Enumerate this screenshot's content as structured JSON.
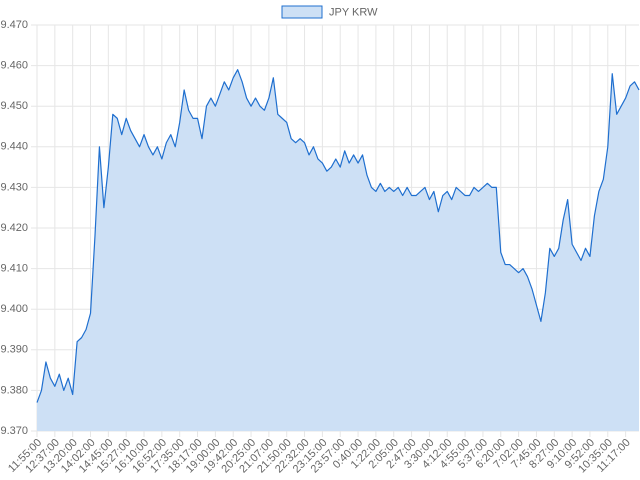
{
  "chart_data": {
    "type": "line",
    "fill": true,
    "grid": true,
    "legend": "top",
    "ylim": [
      9.37,
      9.47
    ],
    "yticks": [
      {
        "value": 9.37,
        "label": "9.370"
      },
      {
        "value": 9.38,
        "label": "9.380"
      },
      {
        "value": 9.39,
        "label": "9.390"
      },
      {
        "value": 9.4,
        "label": "9.400"
      },
      {
        "value": 9.41,
        "label": "9.410"
      },
      {
        "value": 9.42,
        "label": "9.420"
      },
      {
        "value": 9.43,
        "label": "9.430"
      },
      {
        "value": 9.44,
        "label": "9.440"
      },
      {
        "value": 9.45,
        "label": "9.450"
      },
      {
        "value": 9.46,
        "label": "9.460"
      },
      {
        "value": 9.47,
        "label": "9.470"
      }
    ],
    "categories": [
      "11:55:00",
      null,
      null,
      null,
      "12:37:00",
      null,
      null,
      null,
      "13:20:00",
      null,
      null,
      null,
      "14:02:00",
      null,
      null,
      null,
      "14:45:00",
      null,
      null,
      null,
      "15:27:00",
      null,
      null,
      null,
      "16:10:00",
      null,
      null,
      null,
      "16:52:00",
      null,
      null,
      null,
      "17:35:00",
      null,
      null,
      null,
      "18:17:00",
      null,
      null,
      null,
      "19:00:00",
      null,
      null,
      null,
      "19:42:00",
      null,
      null,
      null,
      "20:25:00",
      null,
      null,
      null,
      "21:07:00",
      null,
      null,
      null,
      "21:50:00",
      null,
      null,
      null,
      "22:32:00",
      null,
      null,
      null,
      "23:15:00",
      null,
      null,
      null,
      "23:57:00",
      null,
      null,
      null,
      "0:40:00",
      null,
      null,
      null,
      "1:22:00",
      null,
      null,
      null,
      "2:05:00",
      null,
      null,
      null,
      "2:47:00",
      null,
      null,
      null,
      "3:30:00",
      null,
      null,
      null,
      "4:12:00",
      null,
      null,
      null,
      "4:55:00",
      null,
      null,
      null,
      "5:37:00",
      null,
      null,
      null,
      "6:20:00",
      null,
      null,
      null,
      "7:02:00",
      null,
      null,
      null,
      "7:45:00",
      null,
      null,
      null,
      "8:27:00",
      null,
      null,
      null,
      "9:10:00",
      null,
      null,
      null,
      "9:52:00",
      null,
      null,
      null,
      "10:35:00",
      null,
      null,
      null,
      "11:17:00",
      null,
      null,
      null
    ],
    "series": [
      {
        "name": "JPY KRW",
        "color": "#1f6fcf",
        "fill_color": "#cde0f5",
        "values": [
          9.377,
          9.38,
          9.387,
          9.383,
          9.381,
          9.384,
          9.38,
          9.383,
          9.379,
          9.392,
          9.393,
          9.395,
          9.399,
          9.418,
          9.44,
          9.425,
          9.435,
          9.448,
          9.447,
          9.443,
          9.447,
          9.444,
          9.442,
          9.44,
          9.443,
          9.44,
          9.438,
          9.44,
          9.437,
          9.441,
          9.443,
          9.44,
          9.446,
          9.454,
          9.449,
          9.447,
          9.447,
          9.442,
          9.45,
          9.452,
          9.45,
          9.453,
          9.456,
          9.454,
          9.457,
          9.459,
          9.456,
          9.452,
          9.45,
          9.452,
          9.45,
          9.449,
          9.452,
          9.457,
          9.448,
          9.447,
          9.446,
          9.442,
          9.441,
          9.442,
          9.441,
          9.438,
          9.44,
          9.437,
          9.436,
          9.434,
          9.435,
          9.437,
          9.435,
          9.439,
          9.436,
          9.438,
          9.436,
          9.438,
          9.433,
          9.43,
          9.429,
          9.431,
          9.429,
          9.43,
          9.429,
          9.43,
          9.428,
          9.43,
          9.428,
          9.428,
          9.429,
          9.43,
          9.427,
          9.429,
          9.424,
          9.428,
          9.429,
          9.427,
          9.43,
          9.429,
          9.428,
          9.428,
          9.43,
          9.429,
          9.43,
          9.431,
          9.43,
          9.43,
          9.414,
          9.411,
          9.411,
          9.41,
          9.409,
          9.41,
          9.408,
          9.405,
          9.401,
          9.397,
          9.404,
          9.415,
          9.413,
          9.415,
          9.422,
          9.427,
          9.416,
          9.414,
          9.412,
          9.415,
          9.413,
          9.423,
          9.429,
          9.432,
          9.44,
          9.458,
          9.448,
          9.45,
          9.452,
          9.455,
          9.456,
          9.454
        ]
      }
    ]
  }
}
